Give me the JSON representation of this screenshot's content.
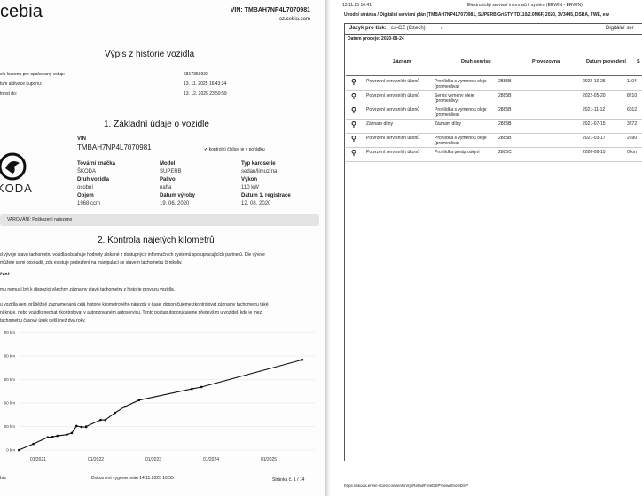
{
  "left_page": {
    "logo": "cebia",
    "header_vin": "VIN: TMBAH7NP4L7070981",
    "header_site": "cz.cebia.com",
    "title": "Výpis z historie vozidla",
    "coupon": [
      {
        "label": "slo kuponu pro opakovaný vstup:",
        "value": "6817359932"
      },
      {
        "label": "tum aktivace kuponu:",
        "value": "13. 11. 2025 16:43:34"
      },
      {
        "label": "tnost do:",
        "value": "13. 12. 2025 23:59:59"
      }
    ],
    "section1_title": "1. Základní údaje o vozidle",
    "vin_label": "VIN",
    "vin_value": "TMBAH7NP4L7070981",
    "checksum_text": "kontrolní číslice je v pořádku",
    "brand_logo_text": "KODA",
    "fields": [
      {
        "label": "Tovární značka",
        "value": "ŠKODA"
      },
      {
        "label": "Model",
        "value": "SUPERB"
      },
      {
        "label": "Typ karoserie",
        "value": "sedan/limuzína"
      },
      {
        "label": "Druh vozidla",
        "value": "osobní"
      },
      {
        "label": "Palivo",
        "value": "nafta"
      },
      {
        "label": "Výkon",
        "value": "110 kW"
      },
      {
        "label": "Objem",
        "value": "1968 ccm"
      },
      {
        "label": "Datum výroby",
        "value": "19. 06. 2020"
      },
      {
        "label": "Datum 1. registrace",
        "value": "12. 08. 2020"
      }
    ],
    "warning": "VAROVÁNÍ: Poškození nalezeno",
    "section2_title": "2. Kontrola najetých kilometrů",
    "para1a": "d vývoje stavu tachometru vozidla obsahuje hodnoty získané z dostupných informačních systémů spolupracujících partnerů. Dle vývoje",
    "para1b": "můžete sami posoudit, zda existuje podezření na manipulaci se stavem tachometru či nikoliv.",
    "note_head": "čení:",
    "para2": "mu nemusí být k dispozici všechny záznamy stavů tachometru z historie provozu vozidla.",
    "para3a": "u vozidla není průběžně zaznamenaná celá historie kilometrového nájezdu v čase, doporučujeme zkontrolovat záznamy tachometru také",
    "para3b": "ní knize, nebo vozidlo nechat zkontrolovat v autorizovaném autoservisu. Tento postup doporučujeme především u vozidel, kde je mezi",
    "para3c": "tachometru časový úsek delší než dva roky.",
    "footer_left": "bia",
    "footer_center": "Dokument vygenerován 14.11.2025 10:55",
    "footer_right": "Stránka č. 1 / 14"
  },
  "chart_data": {
    "type": "line",
    "y_tick_labels": [
      "0 km",
      "00 km",
      "00 km",
      "00 km",
      "00 km",
      "00 km"
    ],
    "y_ticks": [
      0,
      50000,
      100000,
      150000,
      200000,
      250000
    ],
    "x_tick_labels": [
      "01/2021",
      "01/2022",
      "01/2023",
      "01/2024",
      "01/2025"
    ],
    "ylim": [
      0,
      250000
    ],
    "grid": true,
    "series": [
      {
        "x": [
          "2020-09",
          "2020-12",
          "2021-03",
          "2021-04",
          "2021-05",
          "2021-07",
          "2021-08",
          "2021-09",
          "2021-10",
          "2021-11",
          "2021-11",
          "2022-02",
          "2022-03",
          "2022-05",
          "2022-07",
          "2022-10",
          "2023-09",
          "2023-11",
          "2025-08"
        ],
        "y": [
          0,
          13000,
          27000,
          28000,
          30000,
          32700,
          36000,
          51000,
          49000,
          49000,
          50000,
          64000,
          64000,
          79000,
          92000,
          106000,
          130000,
          134000,
          192000
        ]
      }
    ]
  },
  "right_page": {
    "timestamp": "13.11.25 16:41",
    "system_title": "Elektronický servisní informační systém (ERWIN - ERWIN)",
    "breadcrumb": "Úvodní stránka / Digitální servisní plán (TMBAH7NP4L7070981, SUPERB GrtSTY TD110/2.0M6F, 2020, 3V3445, DSRA, TWE, erv",
    "language_label": "Jazyk pro tisk:",
    "language_value": "cs-CZ (Czech)",
    "plan_label": "Digitální ser",
    "sale_date": "Datum prodeje: 2020-08-24",
    "columns": [
      "Záznam",
      "Druh servisu",
      "Provozovna",
      "Datum provedení",
      "S"
    ],
    "rows": [
      [
        "Potvrzení servisních úkonů",
        "Prohlídka s vymenou oleje (promenliva)",
        "2885B",
        "2022-10-25",
        "1104"
      ],
      [
        "Potvrzení servisních úkonů",
        "Servis vymeny oleje (promenlivy)",
        "2885B",
        "2022-05-20",
        "8210"
      ],
      [
        "Potvrzení servisních úkonů",
        "Prohlídka s vymenou oleje (promenliva)",
        "2885B",
        "2021-11-12",
        "6012"
      ],
      [
        "Záznam dílny",
        "Záznam dílny",
        "2885B",
        "2021-07-15",
        "3272"
      ],
      [
        "Potvrzení servisních úkonů",
        "Prohlídka s vymenou oleje (promenliva)",
        "2885B",
        "2021-03-17",
        "2690"
      ],
      [
        "Potvrzení servisních úkonů",
        "Prohlídka predprodejní",
        "2885C",
        "2020-08-15",
        "0 km"
      ]
    ],
    "footer_url": "https://skoda.erwin-store.com/erwin/rp/Retail/FreeDSPView/ShowDSP"
  }
}
